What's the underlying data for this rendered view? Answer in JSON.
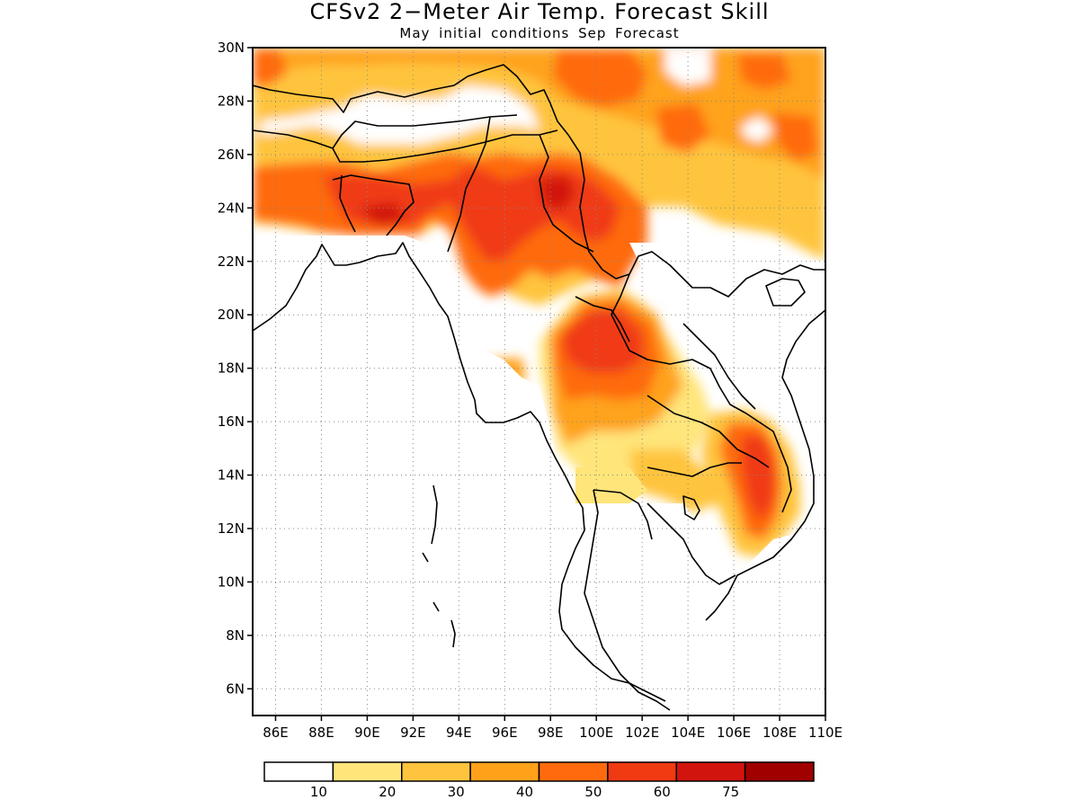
{
  "title": "CFSv2 2−Meter Air Temp. Forecast Skill",
  "subtitle": "May initial conditions  Sep Forecast",
  "map": {
    "lon_range": [
      85,
      110
    ],
    "lat_range": [
      5,
      30
    ],
    "lat_labels": [
      "30N",
      "28N",
      "26N",
      "24N",
      "22N",
      "20N",
      "18N",
      "16N",
      "14N",
      "12N",
      "10N",
      "8N",
      "6N"
    ],
    "lon_labels": [
      "86E",
      "88E",
      "90E",
      "92E",
      "94E",
      "96E",
      "98E",
      "100E",
      "102E",
      "104E",
      "106E",
      "108E",
      "110E"
    ],
    "gridlines": "dotted"
  },
  "legend": {
    "colors": [
      "#ffffff",
      "#ffe57a",
      "#ffc43e",
      "#ffa21a",
      "#ff6a0e",
      "#f03a12",
      "#d2140e",
      "#a00000"
    ],
    "labels": [
      "10",
      "20",
      "30",
      "40",
      "50",
      "60",
      "75"
    ]
  }
}
